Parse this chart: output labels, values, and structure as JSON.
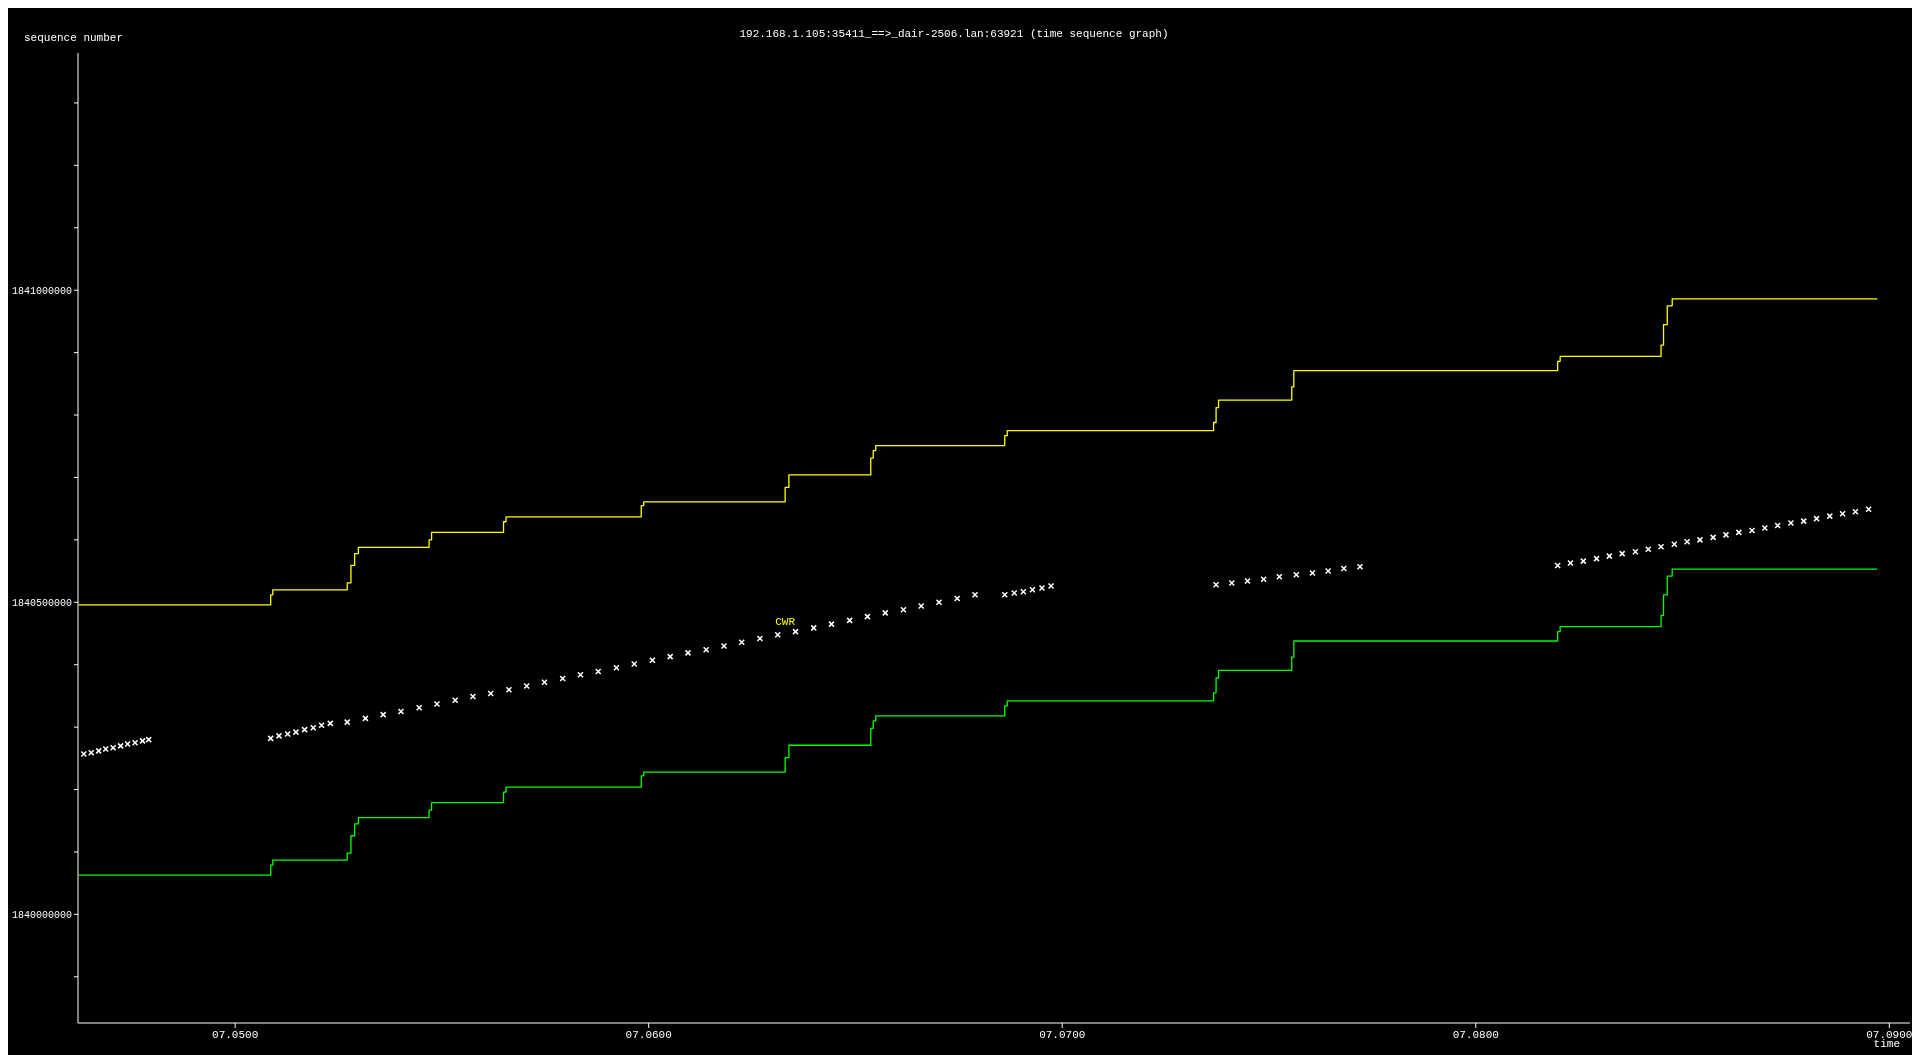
{
  "chart_data": {
    "type": "step",
    "title": "192.168.1.105:35411_==>_dair-2506.lan:63921 (time sequence graph)",
    "xlabel": "time",
    "ylabel": "sequence number",
    "xlim": [
      7.0462,
      7.0905
    ],
    "xticks": [
      {
        "value": 7.05,
        "label": "07.0500"
      },
      {
        "value": 7.06,
        "label": "07.0600"
      },
      {
        "value": 7.07,
        "label": "07.0700"
      },
      {
        "value": 7.08,
        "label": "07.0800"
      },
      {
        "value": 7.09,
        "label": "07.0900"
      }
    ],
    "ylim": [
      1839826000,
      1841380000
    ],
    "yticks": [
      {
        "value": 1839900000,
        "label": null
      },
      1840000000,
      {
        "value": 1840100000,
        "label": null
      },
      {
        "value": 1840200000,
        "label": null
      },
      {
        "value": 1840300000,
        "label": null
      },
      {
        "value": 1840400000,
        "label": null
      },
      1840500000,
      {
        "value": 1840600000,
        "label": null
      },
      {
        "value": 1840700000,
        "label": null
      },
      {
        "value": 1840800000,
        "label": null
      },
      {
        "value": 1840900000,
        "label": null
      },
      1841000000,
      {
        "value": 1841100000,
        "label": null
      },
      {
        "value": 1841200000,
        "label": null
      },
      {
        "value": 1841300000,
        "label": null
      }
    ],
    "grid": false,
    "line_style": "solid",
    "annotations": [
      {
        "text": "CWR",
        "x": 7.0633,
        "y": 1840451000
      }
    ],
    "series": [
      {
        "color": "#ffff00",
        "x": [
          7.04622,
          7.05086,
          7.05091,
          7.05271,
          7.0528,
          7.05289,
          7.05298,
          7.05469,
          7.05475,
          7.05649,
          7.05655,
          7.05982,
          7.05988,
          7.0633,
          7.06339,
          7.06537,
          7.06543,
          7.06549,
          7.06861,
          7.06867,
          7.07366,
          7.07372,
          7.07378,
          7.07555,
          7.0756,
          7.08198,
          7.08204,
          7.08448,
          7.08454,
          7.08463,
          7.08475,
          7.08971
        ],
        "values": [
          1840496000,
          1840512000,
          1840520000,
          1840531000,
          1840559000,
          1840578000,
          1840588000,
          1840600000,
          1840612000,
          1840629000,
          1840637000,
          1840655000,
          1840661000,
          1840684000,
          1840704000,
          1840731000,
          1840743000,
          1840751000,
          1840767000,
          1840775000,
          1840788000,
          1840812000,
          1840824000,
          1840845000,
          1840871000,
          1840886000,
          1840894000,
          1840912000,
          1840945000,
          1840975000,
          1840986000,
          1840986000
        ]
      },
      {
        "color": "#00ff00",
        "x": [
          7.04622,
          7.05086,
          7.05091,
          7.05271,
          7.0528,
          7.05289,
          7.05298,
          7.05469,
          7.05475,
          7.05649,
          7.05655,
          7.05982,
          7.05988,
          7.0633,
          7.06339,
          7.06537,
          7.06543,
          7.06549,
          7.06861,
          7.06867,
          7.07366,
          7.07372,
          7.07378,
          7.07555,
          7.0756,
          7.08198,
          7.08204,
          7.08448,
          7.08454,
          7.08463,
          7.08475,
          7.08971
        ],
        "values": [
          1840063000,
          1840079000,
          1840087000,
          1840098000,
          1840126000,
          1840145000,
          1840155000,
          1840167000,
          1840179000,
          1840196000,
          1840204000,
          1840222000,
          1840228000,
          1840251000,
          1840271000,
          1840298000,
          1840310000,
          1840318000,
          1840334000,
          1840342000,
          1840355000,
          1840379000,
          1840391000,
          1840412000,
          1840438000,
          1840453000,
          1840461000,
          1840479000,
          1840512000,
          1840542000,
          1840553000,
          1840553000
        ]
      },
      {
        "type": "scatter",
        "color": "#ffffff",
        "marker": "cross",
        "x": [
          7.04634,
          7.04652,
          7.0467,
          7.04687,
          7.04705,
          7.04723,
          7.0474,
          7.04758,
          7.04776,
          7.04791,
          7.05086,
          7.05106,
          7.05127,
          7.05147,
          7.05168,
          7.05189,
          7.05209,
          7.0523,
          7.05271,
          7.05315,
          7.05358,
          7.05401,
          7.05445,
          7.05488,
          7.05532,
          7.05575,
          7.05618,
          7.05662,
          7.05705,
          7.05748,
          7.05792,
          7.05835,
          7.05878,
          7.05922,
          7.05965,
          7.06009,
          7.06052,
          7.06095,
          7.06139,
          7.06182,
          7.06225,
          7.06269,
          7.06312,
          7.06355,
          7.06399,
          7.06442,
          7.06486,
          7.06529,
          7.06572,
          7.06616,
          7.06659,
          7.06702,
          7.06746,
          7.06789,
          7.06861,
          7.06884,
          7.06906,
          7.06928,
          7.06951,
          7.06973,
          7.07372,
          7.0741,
          7.07448,
          7.07487,
          7.07525,
          7.07566,
          7.07605,
          7.07643,
          7.07681,
          7.0772,
          7.08198,
          7.08229,
          7.0826,
          7.08292,
          7.08323,
          7.08354,
          7.08386,
          7.08417,
          7.08448,
          7.0848,
          7.08511,
          7.08542,
          7.08574,
          7.08605,
          7.08636,
          7.08668,
          7.08699,
          7.0873,
          7.08762,
          7.08793,
          7.08824,
          7.08856,
          7.08887,
          7.08918,
          7.0895
        ],
        "values": [
          1840257000,
          1840259000,
          1840262000,
          1840265000,
          1840267000,
          1840270000,
          1840273000,
          1840275000,
          1840278000,
          1840280000,
          1840282000,
          1840286000,
          1840289000,
          1840292000,
          1840296000,
          1840299000,
          1840303000,
          1840306000,
          1840308000,
          1840314000,
          1840320000,
          1840325000,
          1840331000,
          1840337000,
          1840343000,
          1840349000,
          1840354000,
          1840360000,
          1840366000,
          1840372000,
          1840378000,
          1840384000,
          1840389000,
          1840395000,
          1840401000,
          1840407000,
          1840413000,
          1840419000,
          1840424000,
          1840430000,
          1840436000,
          1840442000,
          1840448000,
          1840453000,
          1840459000,
          1840465000,
          1840471000,
          1840477000,
          1840483000,
          1840488000,
          1840494000,
          1840500000,
          1840506000,
          1840512000,
          1840512000,
          1840515000,
          1840517000,
          1840520000,
          1840523000,
          1840526000,
          1840528000,
          1840531000,
          1840534000,
          1840537000,
          1840541000,
          1840544000,
          1840547000,
          1840550000,
          1840554000,
          1840557000,
          1840559000,
          1840563000,
          1840566000,
          1840570000,
          1840574000,
          1840578000,
          1840581000,
          1840585000,
          1840589000,
          1840593000,
          1840597000,
          1840600000,
          1840604000,
          1840608000,
          1840612000,
          1840615000,
          1840619000,
          1840623000,
          1840627000,
          1840630000,
          1840634000,
          1840638000,
          1840642000,
          1840645000,
          1840649000
        ]
      }
    ]
  }
}
